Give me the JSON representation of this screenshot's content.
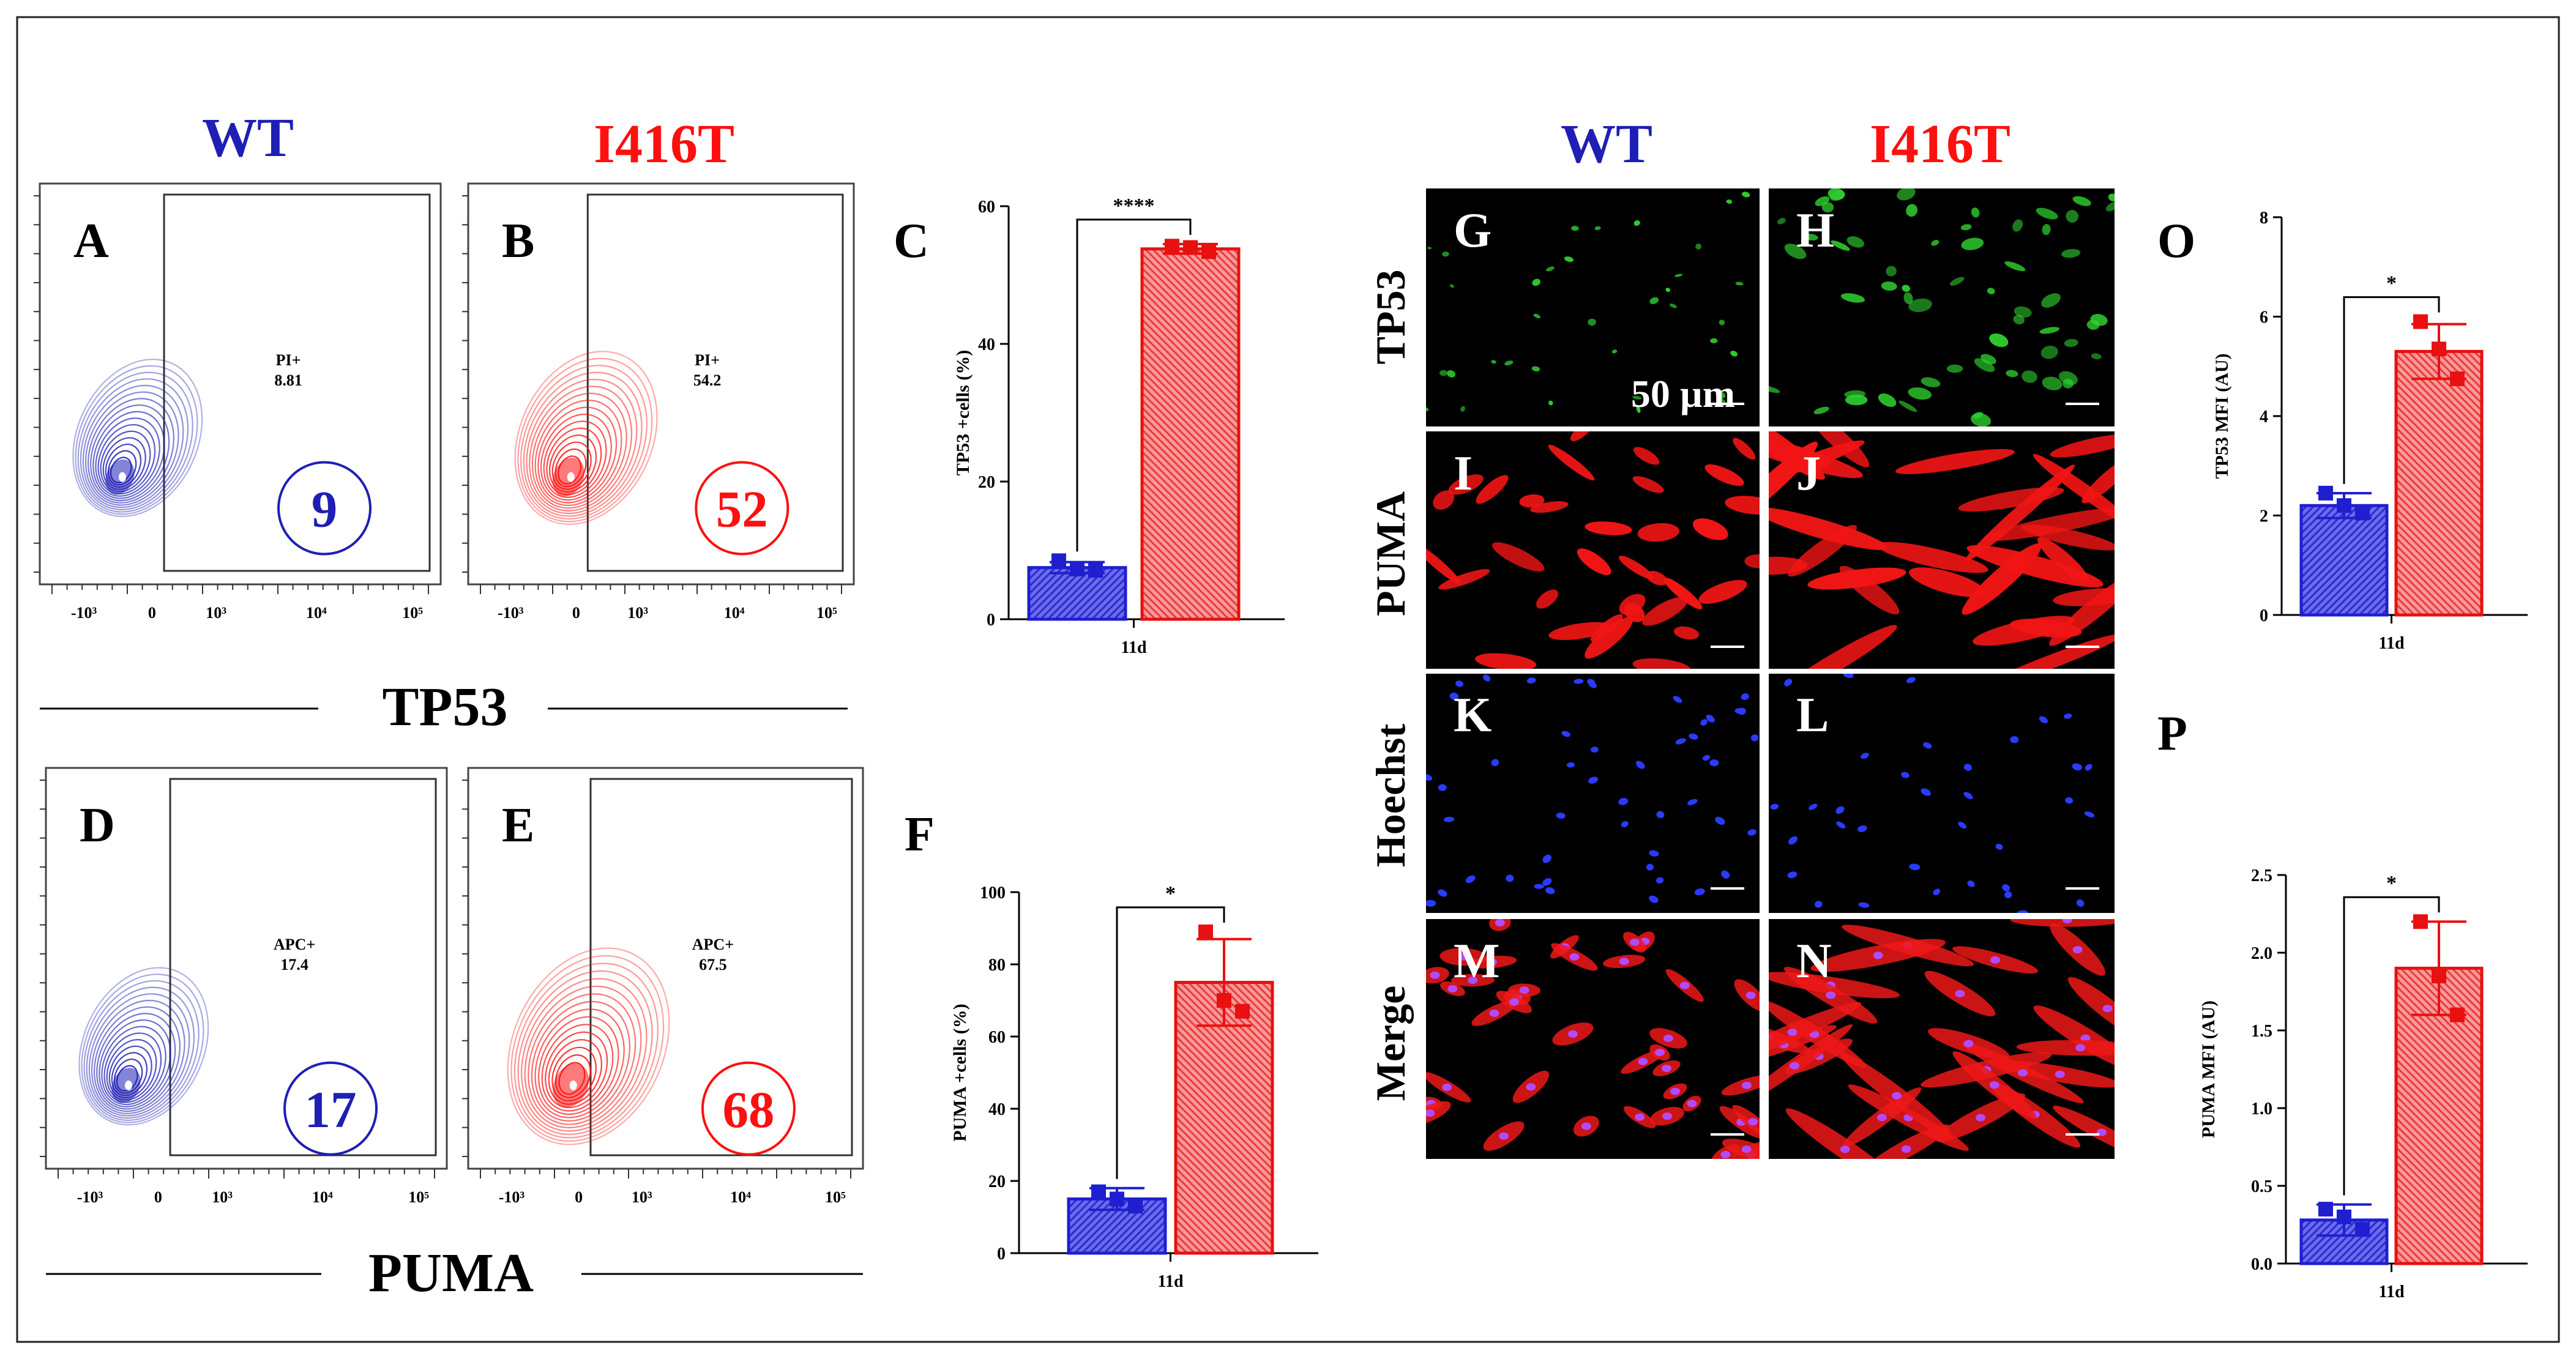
{
  "headers": {
    "flow_wt": "WT",
    "flow_mut": "I416T",
    "img_wt": "WT",
    "img_mut": "I416T",
    "wt_color": "#1f1fb4",
    "mut_color": "#ff0f0f"
  },
  "flow_sections": {
    "top_label": "TP53",
    "bottom_label": "PUMA"
  },
  "flow_axis_ticks": [
    "-10³",
    "0",
    "10³",
    "10⁴",
    "10⁵"
  ],
  "flow_panels": [
    {
      "letter": "A",
      "gate_label": "PI+",
      "gate_value": "8.81",
      "circle_value": "9",
      "color": "#1f1fb4"
    },
    {
      "letter": "B",
      "gate_label": "PI+",
      "gate_value": "54.2",
      "circle_value": "52",
      "color": "#ff0f0f"
    },
    {
      "letter": "D",
      "gate_label": "APC+",
      "gate_value": "17.4",
      "circle_value": "17",
      "color": "#1f1fb4"
    },
    {
      "letter": "E",
      "gate_label": "APC+",
      "gate_value": "67.5",
      "circle_value": "68",
      "color": "#ff0f0f"
    }
  ],
  "micro": {
    "row_labels": [
      "TP53",
      "PUMA",
      "Hoechst",
      "Merge"
    ],
    "panel_letters": [
      "G",
      "H",
      "I",
      "J",
      "K",
      "L",
      "M",
      "N"
    ],
    "scale_label": "50 µm"
  },
  "chart_data": [
    {
      "letter": "C",
      "type": "bar",
      "categories": [
        "11d"
      ],
      "xlabel": "11d",
      "ylabel": "TP53 +cells (%)",
      "ylim": [
        0,
        60
      ],
      "yticks": [
        "0",
        "20",
        "40",
        "60"
      ],
      "significance": "****",
      "series": [
        {
          "name": "WT",
          "values": [
            7.5
          ],
          "sd": [
            0.8
          ],
          "points": [
            8.5,
            7.3,
            7.1
          ]
        },
        {
          "name": "I416T",
          "values": [
            53.8
          ],
          "sd": [
            0.7
          ],
          "points": [
            54.2,
            54.0,
            53.4
          ]
        }
      ]
    },
    {
      "letter": "F",
      "type": "bar",
      "categories": [
        "11d"
      ],
      "xlabel": "11d",
      "ylabel": "PUMA +cells (%)",
      "ylim": [
        0,
        100
      ],
      "yticks": [
        "0",
        "20",
        "40",
        "60",
        "80",
        "100"
      ],
      "significance": "*",
      "series": [
        {
          "name": "WT",
          "values": [
            15
          ],
          "sd": [
            3
          ],
          "points": [
            17,
            15,
            13
          ]
        },
        {
          "name": "I416T",
          "values": [
            75
          ],
          "sd": [
            12
          ],
          "points": [
            89,
            70,
            67
          ]
        }
      ]
    },
    {
      "letter": "O",
      "type": "bar",
      "categories": [
        "11d"
      ],
      "xlabel": "11d",
      "ylabel": "TP53 MFI (AU)",
      "ylim": [
        0,
        8
      ],
      "yticks": [
        "0",
        "2",
        "4",
        "6",
        "8"
      ],
      "significance": "*",
      "series": [
        {
          "name": "WT",
          "values": [
            2.2
          ],
          "sd": [
            0.25
          ],
          "points": [
            2.45,
            2.2,
            2.05
          ]
        },
        {
          "name": "I416T",
          "values": [
            5.3
          ],
          "sd": [
            0.55
          ],
          "points": [
            5.9,
            5.35,
            4.75
          ]
        }
      ]
    },
    {
      "letter": "P",
      "type": "bar",
      "categories": [
        "11d"
      ],
      "xlabel": "11d",
      "ylabel": "PUMA MFI (AU)",
      "ylim": [
        0,
        2.5
      ],
      "yticks": [
        "0.0",
        "0.5",
        "1.0",
        "1.5",
        "2.0",
        "2.5"
      ],
      "significance": "*",
      "series": [
        {
          "name": "WT",
          "values": [
            0.28
          ],
          "sd": [
            0.1
          ],
          "points": [
            0.35,
            0.3,
            0.22
          ]
        },
        {
          "name": "I416T",
          "values": [
            1.9
          ],
          "sd": [
            0.3
          ],
          "points": [
            2.2,
            1.85,
            1.6
          ]
        }
      ]
    }
  ]
}
